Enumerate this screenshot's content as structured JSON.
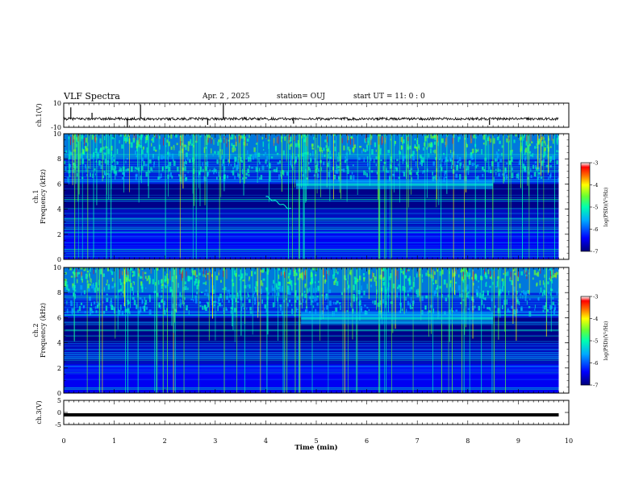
{
  "header": {
    "title": "VLF Spectra",
    "date": "Apr. 2  , 2025",
    "station": "station= OUJ",
    "start": "start  UT  =    11: 0   : 0"
  },
  "chart_data": [
    {
      "type": "line",
      "name": "ch1-waveform",
      "ylabel": "ch.1(V)",
      "ylim": [
        -10,
        10
      ],
      "yticks": [
        "10",
        "-10"
      ],
      "xlim": [
        0,
        10
      ],
      "baseline_value": -3,
      "spikes": [
        {
          "x": 0.14,
          "y": 6.5
        },
        {
          "x": 0.56,
          "y": 2.0
        },
        {
          "x": 1.26,
          "y": -10.0
        },
        {
          "x": 1.52,
          "y": 9.0
        },
        {
          "x": 2.85,
          "y": -8.0
        },
        {
          "x": 3.16,
          "y": 10.0
        },
        {
          "x": 4.55,
          "y": -7.0
        },
        {
          "x": 8.43,
          "y": -8.0
        }
      ]
    },
    {
      "type": "heatmap",
      "name": "ch1-spectrogram",
      "ylabel": "ch.1\nFrequency  (kHz)",
      "xlim": [
        0,
        9.8
      ],
      "ylim": [
        0,
        10
      ],
      "yticks": [
        "0",
        "2",
        "4",
        "6",
        "8",
        "10"
      ],
      "colorbar_label": "log(PSD)(V²/Hz)",
      "colorbar_ticks": [
        "-3",
        "-4",
        "-5",
        "-6",
        "-7"
      ],
      "colorbar_range": [
        -7,
        -3
      ],
      "features": {
        "emission_band": {
          "x_range": [
            4.6,
            8.5
          ],
          "freq_range": [
            5.6,
            6.3
          ]
        },
        "whistler_trace": {
          "x_range": [
            4.0,
            4.5
          ],
          "freq_range": [
            4.0,
            5.0
          ]
        }
      }
    },
    {
      "type": "heatmap",
      "name": "ch2-spectrogram",
      "ylabel": "ch.2\nFrequency  (kHz)",
      "xlim": [
        0,
        9.8
      ],
      "ylim": [
        0,
        10
      ],
      "yticks": [
        "0",
        "2",
        "4",
        "6",
        "8",
        "10"
      ],
      "colorbar_label": "log(PSD)(V²/Hz)",
      "colorbar_ticks": [
        "-3",
        "-4",
        "-5",
        "-6",
        "-7"
      ],
      "colorbar_range": [
        -7,
        -3
      ],
      "features": {
        "emission_band": {
          "x_range": [
            4.7,
            8.5
          ],
          "freq_range": [
            5.5,
            6.4
          ]
        }
      }
    },
    {
      "type": "line",
      "name": "ch3-waveform",
      "ylabel": "ch.3(V)",
      "ylim": [
        -5,
        5
      ],
      "yticks": [
        "5",
        "0",
        "-5"
      ],
      "xlim": [
        0,
        10
      ],
      "baseline_value": -1.0
    }
  ],
  "xaxis": {
    "label": "Time  (min)",
    "ticks": [
      "0",
      "1",
      "2",
      "3",
      "4",
      "5",
      "6",
      "7",
      "8",
      "9",
      "10"
    ],
    "range": [
      0,
      10
    ]
  },
  "colors": {
    "colormap": [
      "#00007a",
      "#0000ff",
      "#00aaff",
      "#00ffb0",
      "#66ff33",
      "#ffff00",
      "#ff7700",
      "#ff0000",
      "#ffffff"
    ]
  }
}
